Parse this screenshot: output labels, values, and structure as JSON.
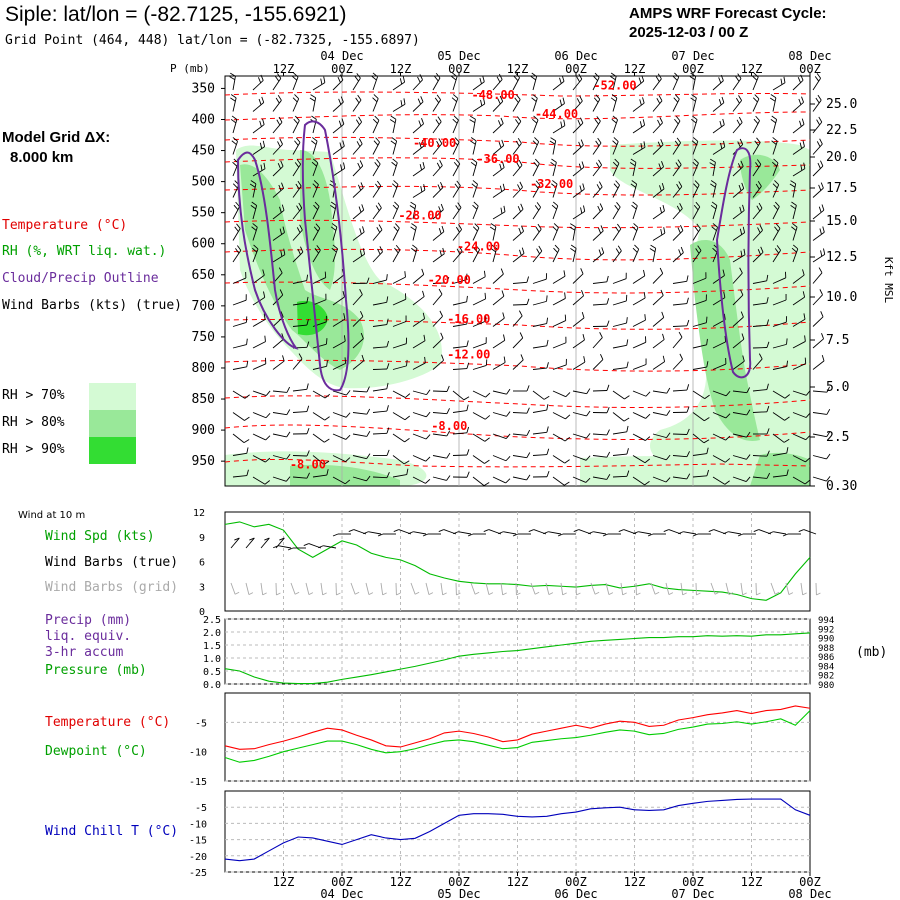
{
  "header": {
    "title": "Siple:  lat/lon = (-82.7125, -155.6921)",
    "subtitle": "Grid Point (464, 448) lat/lon = (-82.7325, -155.6897)",
    "cycle_line1": "AMPS WRF Forecast Cycle:",
    "cycle_line2": "2025-12-03 / 00  Z"
  },
  "model": {
    "line1": "Model Grid ΔX:",
    "line2": "8.000 km"
  },
  "sidebar": {
    "temperature": "Temperature (°C)",
    "rh": "RH (%, WRT liq. wat.)",
    "cloud": "Cloud/Precip Outline",
    "wind_barbs": "Wind Barbs (kts) (true)",
    "rh_legend": [
      {
        "label": "RH > 70%",
        "color": "#d4fad4"
      },
      {
        "label": "RH > 80%",
        "color": "#99e899"
      },
      {
        "label": "RH > 90%",
        "color": "#33dd33"
      }
    ],
    "wind10m": "Wind at 10 m",
    "wind_spd": "Wind Spd (kts)",
    "barbs_true": "Wind Barbs (true)",
    "barbs_grid": "Wind Barbs (grid)",
    "precip1": "Precip (mm)",
    "precip2": "liq. equiv.",
    "precip3": "3-hr accum",
    "pressure": "Pressure (mb)",
    "temp2": "Temperature (°C)",
    "dewpoint": "Dewpoint (°C)",
    "windchill": "Wind Chill T (°C)",
    "mb_unit": "(mb)"
  },
  "colors": {
    "temp": "#ff0000",
    "rh": "#00bb00",
    "cloud": "#6a2c9c",
    "pressure": "#00bb00",
    "dew": "#00cc00",
    "windchill": "#0000bb",
    "grid": "#aaaaaa",
    "grid_barbs": "#aaaaaa"
  },
  "chart_data": [
    {
      "type": "heatmap",
      "name": "cross-section",
      "ylabel": "P (mb)",
      "y2label": "Kft MSL",
      "ylim": [
        990,
        330
      ],
      "xlim_hours": [
        0,
        120
      ],
      "top_ticks": [
        {
          "h": 12,
          "hour": "12Z",
          "day": ""
        },
        {
          "h": 24,
          "hour": "00Z",
          "day": "04 Dec"
        },
        {
          "h": 36,
          "hour": "12Z",
          "day": ""
        },
        {
          "h": 48,
          "hour": "00Z",
          "day": "05 Dec"
        },
        {
          "h": 60,
          "hour": "12Z",
          "day": ""
        },
        {
          "h": 72,
          "hour": "00Z",
          "day": "06 Dec"
        },
        {
          "h": 84,
          "hour": "12Z",
          "day": ""
        },
        {
          "h": 96,
          "hour": "00Z",
          "day": "07 Dec"
        },
        {
          "h": 108,
          "hour": "12Z",
          "day": ""
        },
        {
          "h": 120,
          "hour": "00Z",
          "day": "08 Dec"
        }
      ],
      "pressure_ticks": [
        "350",
        "400",
        "450",
        "500",
        "550",
        "600",
        "650",
        "700",
        "750",
        "800",
        "850",
        "900",
        "950"
      ],
      "kft_ticks": [
        "25.0",
        "22.5",
        "20.0",
        "17.5",
        "15.0",
        "12.5",
        "10.0",
        "7.5",
        "5.0",
        "2.5",
        "0.30"
      ],
      "temp_labels": [
        {
          "label": "-52.00",
          "h": 80,
          "p": 352
        },
        {
          "label": "-48.00",
          "h": 55,
          "p": 367
        },
        {
          "label": "-44.00",
          "h": 68,
          "p": 398
        },
        {
          "label": "-40.00",
          "h": 43,
          "p": 444
        },
        {
          "label": "-36.00",
          "h": 56,
          "p": 470
        },
        {
          "label": "-32.00",
          "h": 67,
          "p": 510
        },
        {
          "label": "-28.00",
          "h": 40,
          "p": 561
        },
        {
          "label": "-24.00",
          "h": 52,
          "p": 611
        },
        {
          "label": "-20.00",
          "h": 46,
          "p": 665
        },
        {
          "label": "-16.00",
          "h": 50,
          "p": 728
        },
        {
          "label": "-12.00",
          "h": 50,
          "p": 785
        },
        {
          "label": "-8.00",
          "h": 46,
          "p": 900
        },
        {
          "label": "-8.00",
          "h": 17,
          "p": 962
        }
      ]
    },
    {
      "type": "line",
      "name": "wind",
      "ylim": [
        0,
        12
      ],
      "yticks": [
        "0",
        "3",
        "6",
        "9",
        "12"
      ],
      "x": [
        0,
        3,
        6,
        9,
        12,
        15,
        18,
        21,
        24,
        27,
        30,
        33,
        36,
        39,
        42,
        45,
        48,
        51,
        54,
        57,
        60,
        63,
        66,
        69,
        72,
        75,
        78,
        81,
        84,
        87,
        90,
        93,
        96,
        99,
        102,
        105,
        108,
        111,
        114,
        117,
        120
      ],
      "series": [
        {
          "name": "Wind Spd (kts)",
          "values": [
            10.5,
            10.8,
            10.2,
            10.5,
            9.8,
            7.5,
            6.5,
            7.5,
            8.5,
            8.0,
            7.0,
            6.5,
            6.2,
            5.5,
            4.5,
            4.0,
            3.6,
            3.4,
            3.3,
            3.3,
            3.2,
            3.0,
            3.1,
            3.0,
            2.9,
            3.1,
            3.2,
            2.8,
            3.0,
            3.3,
            2.8,
            2.6,
            2.5,
            2.4,
            2.3,
            2.0,
            1.5,
            1.3,
            2.2,
            4.5,
            6.5
          ]
        }
      ]
    },
    {
      "type": "line",
      "name": "precip-pressure",
      "ylim": [
        0,
        2.5
      ],
      "yticks": [
        "0.0",
        "0.5",
        "1.0",
        "1.5",
        "2.0",
        "2.5"
      ],
      "y2ticks": [
        "980",
        "982",
        "984",
        "986",
        "988",
        "990",
        "992",
        "994"
      ],
      "x": [
        0,
        3,
        6,
        9,
        12,
        15,
        18,
        21,
        24,
        27,
        30,
        33,
        36,
        39,
        42,
        45,
        48,
        51,
        54,
        57,
        60,
        63,
        66,
        69,
        72,
        75,
        78,
        81,
        84,
        87,
        90,
        93,
        96,
        99,
        102,
        105,
        108,
        111,
        114,
        117,
        120
      ],
      "series": [
        {
          "name": "Pressure (mb)",
          "values": [
            983.3,
            982.8,
            981.5,
            980.6,
            980.2,
            980.1,
            980.1,
            980.4,
            981.0,
            981.5,
            982.0,
            982.6,
            983.2,
            983.8,
            984.5,
            985.2,
            986.0,
            986.4,
            986.7,
            987.0,
            987.2,
            987.6,
            988.0,
            988.4,
            988.8,
            989.2,
            989.4,
            989.6,
            989.8,
            990.0,
            990.0,
            990.2,
            990.2,
            990.4,
            990.3,
            990.4,
            990.3,
            990.6,
            990.6,
            990.8,
            991.0
          ]
        }
      ]
    },
    {
      "type": "line",
      "name": "temperature",
      "ylim": [
        -15,
        0
      ],
      "yticks": [
        "-15",
        "-10",
        "-5"
      ],
      "x": [
        0,
        3,
        6,
        9,
        12,
        15,
        18,
        21,
        24,
        27,
        30,
        33,
        36,
        39,
        42,
        45,
        48,
        51,
        54,
        57,
        60,
        63,
        66,
        69,
        72,
        75,
        78,
        81,
        84,
        87,
        90,
        93,
        96,
        99,
        102,
        105,
        108,
        111,
        114,
        117,
        120
      ],
      "series": [
        {
          "name": "Temperature (°C)",
          "values": [
            -9.0,
            -9.6,
            -9.5,
            -8.8,
            -8.2,
            -7.5,
            -6.7,
            -6.0,
            -6.3,
            -7.2,
            -8.0,
            -9.0,
            -9.2,
            -8.5,
            -7.8,
            -6.8,
            -6.5,
            -6.9,
            -7.5,
            -8.3,
            -8.0,
            -7.0,
            -6.5,
            -6.0,
            -5.5,
            -6.0,
            -5.3,
            -4.8,
            -5.0,
            -5.7,
            -5.5,
            -4.6,
            -4.2,
            -3.7,
            -3.4,
            -3.0,
            -3.5,
            -3.0,
            -2.8,
            -2.2,
            -2.6
          ]
        },
        {
          "name": "Dewpoint (°C)",
          "values": [
            -11.0,
            -11.8,
            -11.5,
            -10.8,
            -10.0,
            -9.4,
            -8.8,
            -8.2,
            -8.2,
            -8.8,
            -9.6,
            -10.2,
            -10.0,
            -9.5,
            -8.8,
            -8.2,
            -8.0,
            -8.3,
            -8.9,
            -9.5,
            -9.3,
            -8.4,
            -8.1,
            -7.8,
            -7.6,
            -7.2,
            -6.7,
            -6.3,
            -6.5,
            -7.1,
            -6.9,
            -6.2,
            -5.8,
            -5.3,
            -5.2,
            -4.9,
            -5.3,
            -4.9,
            -4.4,
            -5.5,
            -3.0
          ]
        }
      ]
    },
    {
      "type": "line",
      "name": "wind-chill",
      "ylim": [
        -25,
        0
      ],
      "yticks": [
        "-25",
        "-20",
        "-15",
        "-10",
        "-5"
      ],
      "x": [
        0,
        3,
        6,
        9,
        12,
        15,
        18,
        21,
        24,
        27,
        30,
        33,
        36,
        39,
        42,
        45,
        48,
        51,
        54,
        57,
        60,
        63,
        66,
        69,
        72,
        75,
        78,
        81,
        84,
        87,
        90,
        93,
        96,
        99,
        102,
        105,
        108,
        111,
        114,
        117,
        120
      ],
      "series": [
        {
          "name": "Wind Chill T (°C)",
          "values": [
            -21.0,
            -21.5,
            -21.0,
            -18.5,
            -16.0,
            -14.2,
            -14.5,
            -15.5,
            -16.5,
            -15.0,
            -13.5,
            -14.5,
            -15.0,
            -14.6,
            -12.5,
            -10.0,
            -7.5,
            -7.0,
            -7.0,
            -7.2,
            -7.8,
            -8.0,
            -7.8,
            -7.0,
            -6.5,
            -5.5,
            -5.2,
            -5.0,
            -5.8,
            -6.0,
            -5.8,
            -4.5,
            -3.8,
            -3.2,
            -2.9,
            -2.6,
            -2.5,
            -2.5,
            -2.5,
            -5.8,
            -7.5
          ]
        }
      ]
    }
  ],
  "bottom_axis": [
    {
      "h": 12,
      "hour": "12Z",
      "day": ""
    },
    {
      "h": 24,
      "hour": "00Z",
      "day": "04 Dec"
    },
    {
      "h": 36,
      "hour": "12Z",
      "day": ""
    },
    {
      "h": 48,
      "hour": "00Z",
      "day": "05 Dec"
    },
    {
      "h": 60,
      "hour": "12Z",
      "day": ""
    },
    {
      "h": 72,
      "hour": "00Z",
      "day": "06 Dec"
    },
    {
      "h": 84,
      "hour": "12Z",
      "day": ""
    },
    {
      "h": 96,
      "hour": "00Z",
      "day": "07 Dec"
    },
    {
      "h": 108,
      "hour": "12Z",
      "day": ""
    },
    {
      "h": 120,
      "hour": "00Z",
      "day": "08 Dec"
    }
  ]
}
